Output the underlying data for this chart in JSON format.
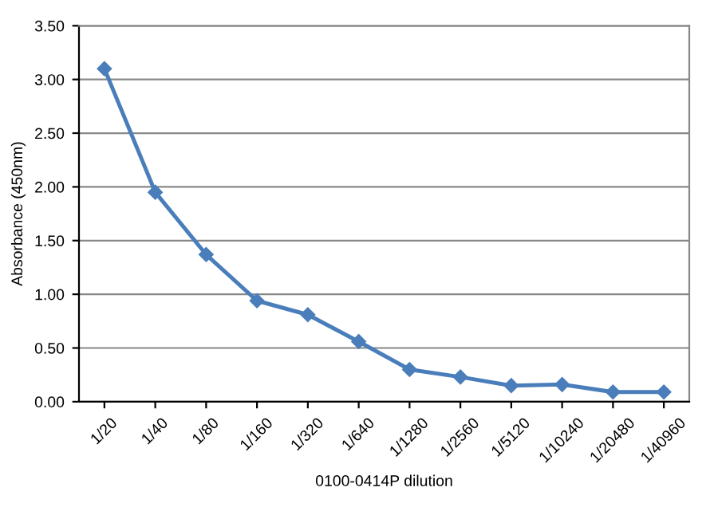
{
  "chart_data": {
    "type": "line",
    "xlabel": "0100-0414P dilution",
    "ylabel": "Absorbance (450nm)",
    "categories": [
      "1/20",
      "1/40",
      "1/80",
      "1/160",
      "1/320",
      "1/640",
      "1/1280",
      "1/2560",
      "1/5120",
      "1/10240",
      "1/20480",
      "1/40960"
    ],
    "series": [
      {
        "color": "#4a7ebb",
        "values": [
          3.1,
          1.95,
          1.37,
          0.94,
          0.81,
          0.56,
          0.3,
          0.23,
          0.15,
          0.16,
          0.09,
          0.09
        ]
      }
    ],
    "ylim": [
      0,
      3.5
    ],
    "yticks": [
      {
        "value": 0,
        "label": "0.00"
      },
      {
        "value": 0.5,
        "label": "0.50"
      },
      {
        "value": 1,
        "label": "1.00"
      },
      {
        "value": 1.5,
        "label": "1.50"
      },
      {
        "value": 2,
        "label": "2.00"
      },
      {
        "value": 2.5,
        "label": "2.50"
      },
      {
        "value": 3,
        "label": "3.00"
      },
      {
        "value": 3.5,
        "label": "3.50"
      }
    ],
    "grid": "y",
    "marker": "diamond",
    "line_style": "solid"
  }
}
